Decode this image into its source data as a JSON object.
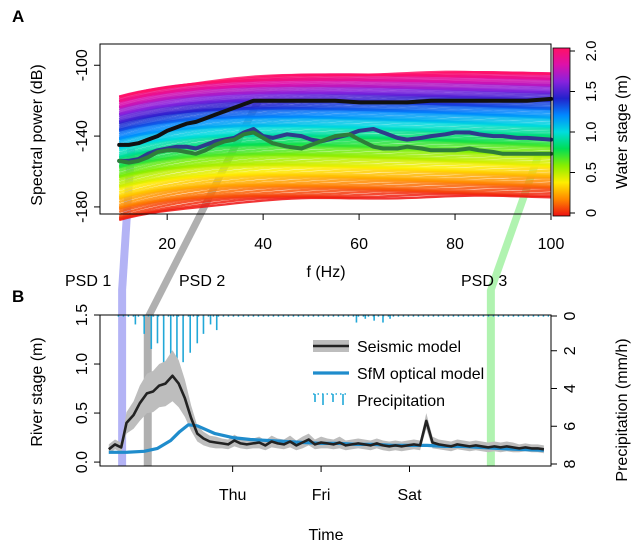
{
  "panel_labels": {
    "a": "A",
    "b": "B"
  },
  "psd_labels": [
    {
      "label": "PSD 1",
      "color": "#3e3ea8"
    },
    {
      "label": "PSD 2",
      "color": "#000000"
    },
    {
      "label": "PSD 3",
      "color": "#2aa54a"
    }
  ],
  "chart_data": [
    {
      "type": "line",
      "xlabel": "f (Hz)",
      "ylabel": "Spectral power (dB)",
      "xlim": [
        6,
        100
      ],
      "ylim": [
        -184,
        -88
      ],
      "xticks": [
        20,
        40,
        60,
        80,
        100
      ],
      "yticks": [
        -180,
        -140,
        -100
      ],
      "grid": false,
      "colorbar": {
        "label": "Water stage (m)",
        "range": [
          0,
          2.0
        ],
        "ticks": [
          "0",
          "0.5",
          "1.0",
          "1.5",
          "2.0"
        ],
        "colors": [
          "#ee1111",
          "#ff8800",
          "#ffee00",
          "#88ee00",
          "#00dd55",
          "#00dddd",
          "#0088ff",
          "#2222cc",
          "#8822dd",
          "#dd11aa",
          "#ff1166"
        ]
      },
      "series": [
        {
          "color": "#111111",
          "x": [
            10,
            12,
            14,
            16,
            18,
            20,
            22,
            24,
            26,
            28,
            30,
            32,
            34,
            36,
            38,
            40,
            45,
            50,
            55,
            60,
            65,
            70,
            75,
            80,
            85,
            90,
            95,
            100
          ],
          "y": [
            -145,
            -145,
            -144,
            -142,
            -140,
            -137,
            -135,
            -133,
            -132,
            -130,
            -128,
            -126,
            -124,
            -122,
            -120,
            -120,
            -120,
            -120,
            -120,
            -121,
            -121,
            -121,
            -120,
            -120,
            -120,
            -120,
            -120,
            -119
          ]
        },
        {
          "color": "#2e3a8c",
          "x": [
            10,
            12,
            14,
            16,
            18,
            20,
            22,
            24,
            26,
            28,
            30,
            32,
            34,
            36,
            38,
            40,
            42,
            45,
            48,
            50,
            52,
            55,
            58,
            60,
            63,
            65,
            68,
            70,
            73,
            75,
            78,
            80,
            83,
            85,
            88,
            90,
            93,
            95,
            100
          ],
          "y": [
            -154,
            -154,
            -153,
            -150,
            -148,
            -147,
            -146,
            -146,
            -147,
            -145,
            -143,
            -142,
            -141,
            -138,
            -136,
            -140,
            -141,
            -139,
            -140,
            -142,
            -143,
            -141,
            -139,
            -137,
            -136,
            -138,
            -141,
            -142,
            -141,
            -140,
            -139,
            -138,
            -138,
            -139,
            -140,
            -140,
            -141,
            -141,
            -142
          ]
        },
        {
          "color": "#2e7d3a",
          "x": [
            10,
            12,
            14,
            16,
            18,
            20,
            22,
            24,
            26,
            28,
            30,
            32,
            34,
            36,
            38,
            40,
            42,
            45,
            48,
            50,
            52,
            55,
            58,
            60,
            63,
            65,
            68,
            70,
            73,
            75,
            78,
            80,
            83,
            85,
            88,
            90,
            93,
            95,
            98,
            100
          ],
          "y": [
            -154,
            -155,
            -154,
            -152,
            -149,
            -148,
            -148,
            -149,
            -150,
            -148,
            -145,
            -143,
            -142,
            -139,
            -138,
            -141,
            -144,
            -146,
            -147,
            -145,
            -143,
            -140,
            -139,
            -142,
            -146,
            -147,
            -147,
            -146,
            -147,
            -148,
            -148,
            -148,
            -147,
            -148,
            -149,
            -150,
            -150,
            -150,
            -150,
            -150
          ]
        }
      ]
    },
    {
      "type": "line",
      "xlabel": "Time",
      "ylabel": "River stage (m)",
      "y2label": "Precipitation (mm/h)",
      "xlim": [
        -1.5,
        3.6
      ],
      "ylim": [
        -0.04,
        1.5
      ],
      "y2lim": [
        0,
        8
      ],
      "xticks": [
        "Thu",
        "Fri",
        "Sat"
      ],
      "yticks": [
        0.0,
        0.5,
        1.0,
        1.5
      ],
      "y2ticks": [
        0,
        2,
        4,
        6,
        8
      ],
      "grid": false,
      "legend_position": "top-right",
      "series": [
        {
          "name": "Seismic model",
          "color": "#222222",
          "band_color": "#bdbdbd",
          "x": [
            -1.4,
            -1.33,
            -1.26,
            -1.2,
            -1.12,
            -1.05,
            -0.97,
            -0.9,
            -0.83,
            -0.76,
            -0.68,
            -0.61,
            -0.54,
            -0.47,
            -0.4,
            -0.33,
            -0.26,
            -0.19,
            -0.12,
            -0.05,
            0.02,
            0.09,
            0.16,
            0.23,
            0.3,
            0.37,
            0.44,
            0.51,
            0.58,
            0.65,
            0.72,
            0.79,
            0.86,
            0.93,
            1.0,
            1.07,
            1.14,
            1.21,
            1.28,
            1.35,
            1.42,
            1.49,
            1.56,
            1.63,
            1.7,
            1.77,
            1.84,
            1.91,
            1.98,
            2.05,
            2.12,
            2.19,
            2.26,
            2.33,
            2.4,
            2.47,
            2.54,
            2.61,
            2.68,
            2.75,
            2.82,
            2.89,
            2.96,
            3.03,
            3.1,
            3.17,
            3.24,
            3.31,
            3.38,
            3.45,
            3.52
          ],
          "y": [
            0.13,
            0.18,
            0.15,
            0.4,
            0.48,
            0.6,
            0.7,
            0.72,
            0.78,
            0.8,
            0.88,
            0.8,
            0.65,
            0.45,
            0.29,
            0.24,
            0.21,
            0.2,
            0.19,
            0.18,
            0.22,
            0.19,
            0.18,
            0.19,
            0.2,
            0.17,
            0.21,
            0.19,
            0.18,
            0.21,
            0.17,
            0.2,
            0.23,
            0.18,
            0.2,
            0.19,
            0.18,
            0.2,
            0.17,
            0.18,
            0.19,
            0.18,
            0.17,
            0.19,
            0.17,
            0.16,
            0.17,
            0.16,
            0.17,
            0.18,
            0.17,
            0.42,
            0.2,
            0.18,
            0.17,
            0.16,
            0.18,
            0.17,
            0.16,
            0.17,
            0.16,
            0.15,
            0.16,
            0.15,
            0.16,
            0.15,
            0.14,
            0.15,
            0.14,
            0.14,
            0.13
          ],
          "band": [
            0.05,
            0.05,
            0.05,
            0.11,
            0.14,
            0.18,
            0.2,
            0.21,
            0.22,
            0.23,
            0.26,
            0.24,
            0.19,
            0.13,
            0.08,
            0.07,
            0.06,
            0.06,
            0.05,
            0.05,
            0.06,
            0.05,
            0.05,
            0.05,
            0.06,
            0.05,
            0.06,
            0.05,
            0.05,
            0.06,
            0.05,
            0.06,
            0.06,
            0.05,
            0.06,
            0.05,
            0.05,
            0.06,
            0.05,
            0.05,
            0.05,
            0.05,
            0.05,
            0.05,
            0.05,
            0.05,
            0.05,
            0.05,
            0.05,
            0.05,
            0.05,
            0.08,
            0.06,
            0.05,
            0.05,
            0.05,
            0.05,
            0.05,
            0.05,
            0.05,
            0.05,
            0.05,
            0.05,
            0.05,
            0.05,
            0.05,
            0.04,
            0.04,
            0.04,
            0.04,
            0.04
          ]
        },
        {
          "name": "SfM optical model",
          "color": "#1f8ccc",
          "x": [
            -1.4,
            -1.2,
            -1.0,
            -0.85,
            -0.7,
            -0.6,
            -0.5,
            -0.4,
            -0.3,
            -0.2,
            -0.1,
            0.0,
            0.2,
            0.4,
            0.6,
            0.8,
            1.0,
            1.2,
            1.4,
            1.6,
            1.8,
            2.0,
            2.2,
            2.4,
            2.6,
            2.8,
            3.0,
            3.2,
            3.52
          ],
          "y": [
            0.1,
            0.1,
            0.11,
            0.14,
            0.22,
            0.31,
            0.38,
            0.37,
            0.33,
            0.29,
            0.27,
            0.25,
            0.23,
            0.22,
            0.21,
            0.2,
            0.19,
            0.19,
            0.18,
            0.18,
            0.17,
            0.17,
            0.17,
            0.16,
            0.16,
            0.15,
            0.14,
            0.13,
            0.12
          ]
        },
        {
          "name": "Precipitation",
          "color": "#22a8d8",
          "axis": "right",
          "x": [
            -1.1,
            -1.0,
            -0.92,
            -0.85,
            -0.78,
            -0.7,
            -0.63,
            -0.56,
            -0.48,
            -0.4,
            -0.33,
            -0.25,
            -0.18,
            1.4,
            1.5,
            1.6,
            1.7,
            1.78
          ],
          "y": [
            0.5,
            1.0,
            1.8,
            1.5,
            3.2,
            3.8,
            2.8,
            2.5,
            2.0,
            1.5,
            1.0,
            0.5,
            0.8,
            0.4,
            0.2,
            0.3,
            0.4,
            0.2
          ]
        }
      ]
    }
  ]
}
